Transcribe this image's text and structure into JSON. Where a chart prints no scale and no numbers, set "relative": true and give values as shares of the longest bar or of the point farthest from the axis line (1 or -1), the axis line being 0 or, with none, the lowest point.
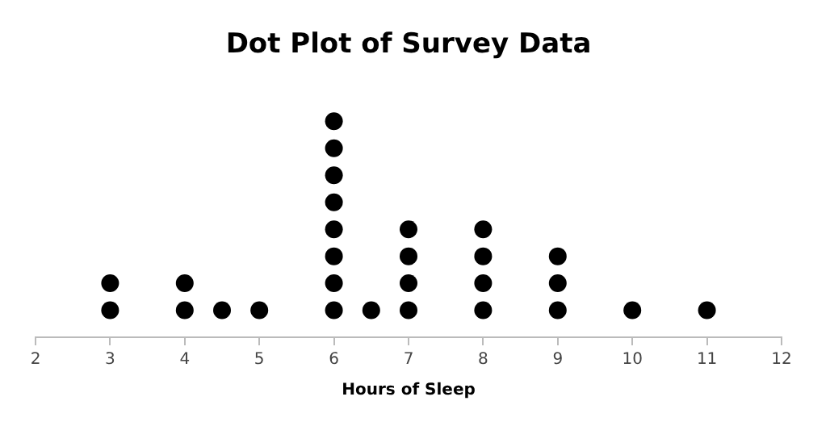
{
  "chart_data": {
    "type": "scatter",
    "title": "Dot Plot of Survey Data",
    "xlabel": "Hours of Sleep",
    "relative": true,
    "series": [
      {
        "color": "#000000",
        "x": [
          3,
          3,
          4,
          4,
          4.5,
          5,
          6,
          6,
          6,
          6,
          6,
          6,
          6,
          6,
          6.5,
          7,
          7,
          7,
          7,
          8,
          8,
          8,
          8,
          9,
          9,
          9,
          10,
          11
        ],
        "values": [
          0.125,
          0.25,
          0.125,
          0.25,
          0.125,
          0.125,
          0.125,
          0.25,
          0.375,
          0.5,
          0.625,
          0.75,
          0.875,
          1,
          0.125,
          0.125,
          0.25,
          0.375,
          0.5,
          0.125,
          0.25,
          0.375,
          0.5,
          0.125,
          0.25,
          0.375,
          0.125,
          0.125
        ]
      }
    ],
    "xlim": [
      2,
      12
    ],
    "xticks": [
      2,
      3,
      4,
      5,
      6,
      7,
      8,
      9,
      10,
      11,
      12
    ],
    "tick_labels": "x",
    "grid": false,
    "legend": false,
    "marker": "circle"
  }
}
